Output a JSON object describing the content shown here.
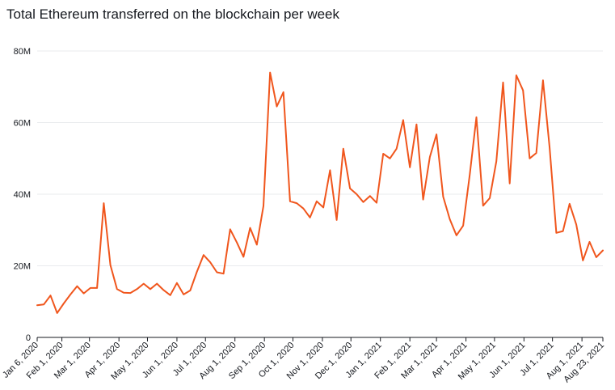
{
  "chart_data": {
    "type": "line",
    "title": "Total Ethereum transferred on the blockchain per week",
    "xlabel": "",
    "ylabel": "",
    "ylim": [
      0,
      80000000
    ],
    "y_ticks": [
      {
        "value": 0,
        "label": "0"
      },
      {
        "value": 20000000,
        "label": "20M"
      },
      {
        "value": 40000000,
        "label": "40M"
      },
      {
        "value": 60000000,
        "label": "60M"
      },
      {
        "value": 80000000,
        "label": "80M"
      }
    ],
    "x_range": [
      "2020-01-06",
      "2021-08-23"
    ],
    "x_ticks": [
      {
        "date": "2020-01-06",
        "label": "Jan 6, 2020"
      },
      {
        "date": "2020-02-01",
        "label": "Feb 1, 2020"
      },
      {
        "date": "2020-03-01",
        "label": "Mar 1, 2020"
      },
      {
        "date": "2020-04-01",
        "label": "Apr 1, 2020"
      },
      {
        "date": "2020-05-01",
        "label": "May 1, 2020"
      },
      {
        "date": "2020-06-01",
        "label": "Jun 1, 2020"
      },
      {
        "date": "2020-07-01",
        "label": "Jul 1, 2020"
      },
      {
        "date": "2020-08-01",
        "label": "Aug 1, 2020"
      },
      {
        "date": "2020-09-01",
        "label": "Sep 1, 2020"
      },
      {
        "date": "2020-10-01",
        "label": "Oct 1, 2020"
      },
      {
        "date": "2020-11-01",
        "label": "Nov 1, 2020"
      },
      {
        "date": "2020-12-01",
        "label": "Dec 1, 2020"
      },
      {
        "date": "2021-01-01",
        "label": "Jan 1, 2021"
      },
      {
        "date": "2021-02-01",
        "label": "Feb 1, 2021"
      },
      {
        "date": "2021-03-01",
        "label": "Mar 1, 2021"
      },
      {
        "date": "2021-04-01",
        "label": "Apr 1, 2021"
      },
      {
        "date": "2021-05-01",
        "label": "May 1, 2021"
      },
      {
        "date": "2021-06-01",
        "label": "Jun 1, 2021"
      },
      {
        "date": "2021-07-01",
        "label": "Jul 1, 2021"
      },
      {
        "date": "2021-08-01",
        "label": "Aug 1, 2021"
      },
      {
        "date": "2021-08-23",
        "label": "Aug 23, 2021"
      }
    ],
    "series": [
      {
        "name": "Total Ethereum transferred",
        "color": "#f0561d",
        "x": [
          "2020-01-06",
          "2020-01-13",
          "2020-01-20",
          "2020-01-27",
          "2020-02-03",
          "2020-02-10",
          "2020-02-17",
          "2020-02-24",
          "2020-03-02",
          "2020-03-09",
          "2020-03-16",
          "2020-03-23",
          "2020-03-30",
          "2020-04-06",
          "2020-04-13",
          "2020-04-20",
          "2020-04-27",
          "2020-05-04",
          "2020-05-11",
          "2020-05-18",
          "2020-05-25",
          "2020-06-01",
          "2020-06-08",
          "2020-06-15",
          "2020-06-22",
          "2020-06-29",
          "2020-07-06",
          "2020-07-13",
          "2020-07-20",
          "2020-07-27",
          "2020-08-03",
          "2020-08-10",
          "2020-08-17",
          "2020-08-24",
          "2020-08-31",
          "2020-09-07",
          "2020-09-14",
          "2020-09-21",
          "2020-09-28",
          "2020-10-05",
          "2020-10-12",
          "2020-10-19",
          "2020-10-26",
          "2020-11-02",
          "2020-11-09",
          "2020-11-16",
          "2020-11-23",
          "2020-11-30",
          "2020-12-07",
          "2020-12-14",
          "2020-12-21",
          "2020-12-28",
          "2021-01-04",
          "2021-01-11",
          "2021-01-18",
          "2021-01-25",
          "2021-02-01",
          "2021-02-08",
          "2021-02-15",
          "2021-02-22",
          "2021-03-01",
          "2021-03-08",
          "2021-03-15",
          "2021-03-22",
          "2021-03-29",
          "2021-04-05",
          "2021-04-12",
          "2021-04-19",
          "2021-04-26",
          "2021-05-03",
          "2021-05-10",
          "2021-05-17",
          "2021-05-24",
          "2021-05-31",
          "2021-06-07",
          "2021-06-14",
          "2021-06-21",
          "2021-06-28",
          "2021-07-05",
          "2021-07-12",
          "2021-07-19",
          "2021-07-26",
          "2021-08-02",
          "2021-08-09",
          "2021-08-16",
          "2021-08-23"
        ],
        "values": [
          9000000,
          9200000,
          11700000,
          6800000,
          9500000,
          12000000,
          14300000,
          12300000,
          13800000,
          13800000,
          37500000,
          20200000,
          13500000,
          12500000,
          12400000,
          13500000,
          15000000,
          13500000,
          15000000,
          13200000,
          11800000,
          15200000,
          12000000,
          13100000,
          18300000,
          23000000,
          21000000,
          18200000,
          17800000,
          30200000,
          26500000,
          22500000,
          30600000,
          25900000,
          36700000,
          74000000,
          64500000,
          68500000,
          38000000,
          37500000,
          36000000,
          33500000,
          38000000,
          36300000,
          46700000,
          32800000,
          52700000,
          41600000,
          40000000,
          37800000,
          39500000,
          37600000,
          51300000,
          50000000,
          52700000,
          60700000,
          47500000,
          59500000,
          38500000,
          50400000,
          56700000,
          39300000,
          33000000,
          28500000,
          31200000,
          45500000,
          61500000,
          36800000,
          38900000,
          49200000,
          71200000,
          43000000,
          73200000,
          69000000,
          50000000,
          51500000,
          71800000,
          53000000,
          29200000,
          29700000,
          37300000,
          31500000,
          21500000,
          26700000,
          22400000,
          24300000
        ]
      }
    ]
  }
}
